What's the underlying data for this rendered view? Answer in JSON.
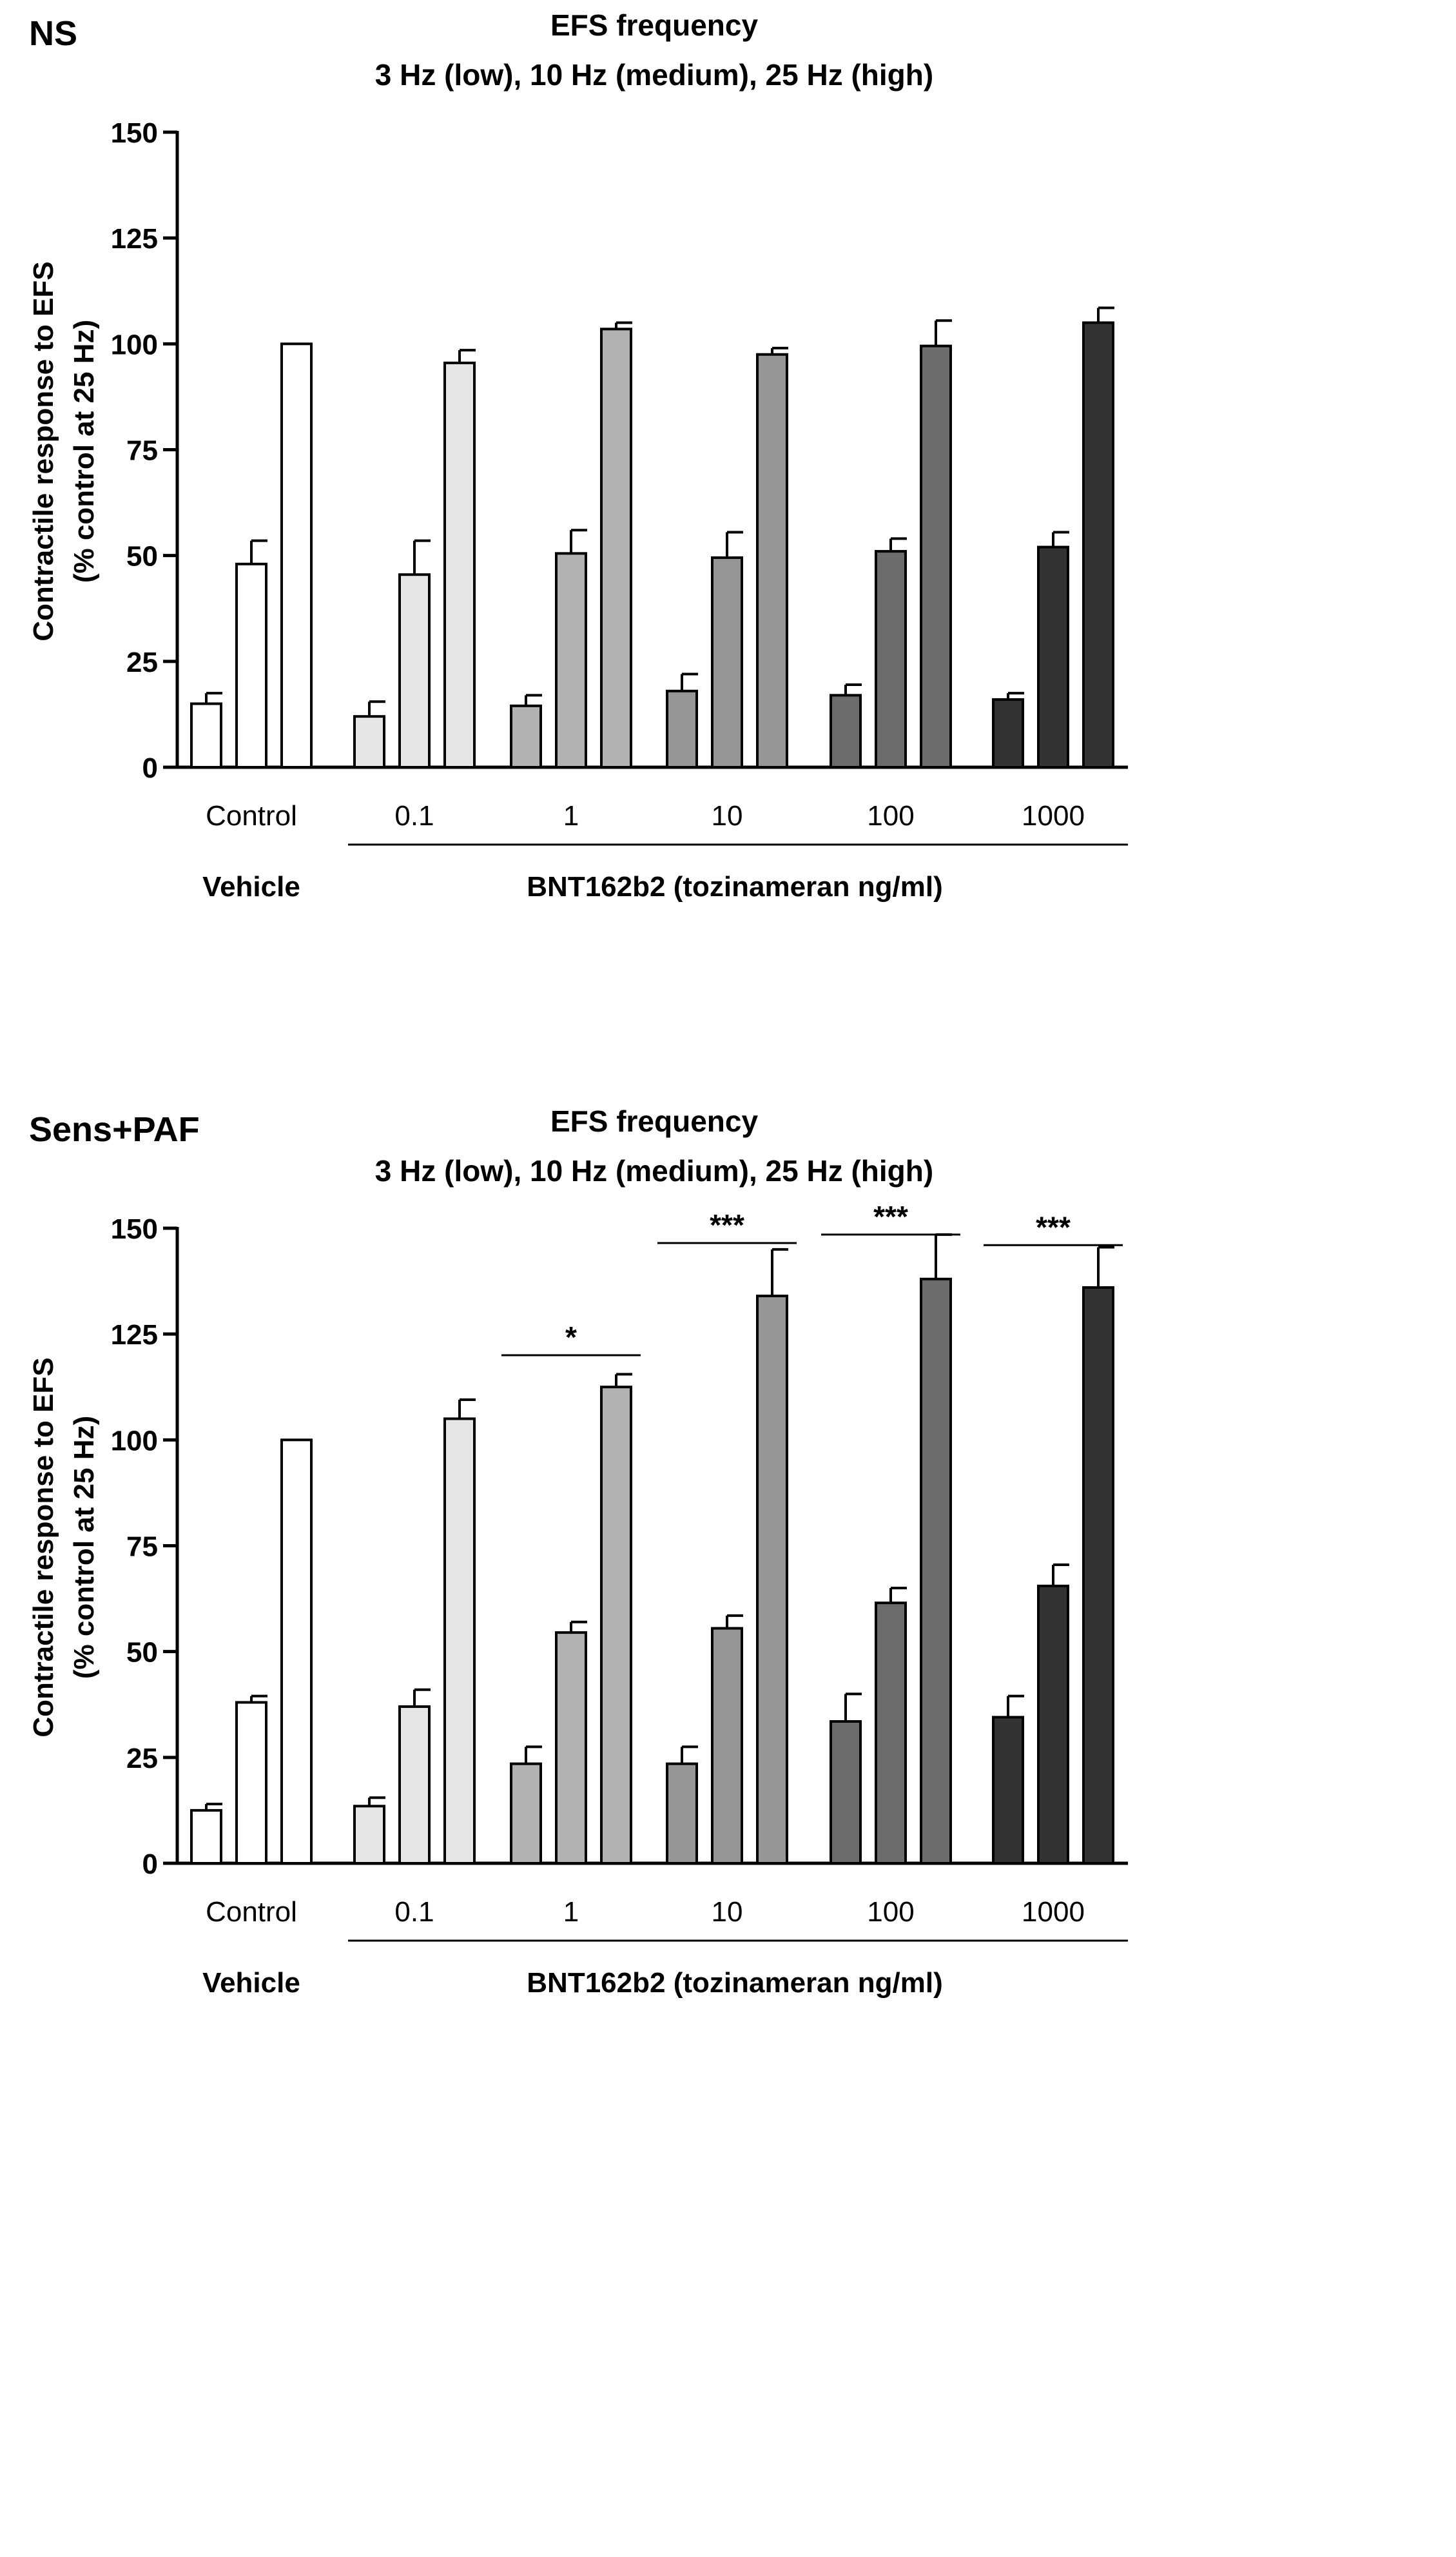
{
  "figure": {
    "background": "#ffffff"
  },
  "chart_data": [
    {
      "type": "bar",
      "panel_label": "NS",
      "title": "EFS frequency",
      "subtitle": "3 Hz (low), 10 Hz (medium), 25 Hz (high)",
      "ylabel_line1": "Contractile response to EFS",
      "ylabel_line2": "(% control at 25 Hz)",
      "ylim": [
        0,
        150
      ],
      "yticks": [
        "0",
        "25",
        "50",
        "75",
        "100",
        "125",
        "150"
      ],
      "categories": [
        "Control",
        "0.1",
        "1",
        "10",
        "100",
        "1000"
      ],
      "group_colors": [
        "#ffffff",
        "#e6e6e6",
        "#b2b2b2",
        "#969696",
        "#6c6c6c",
        "#333333"
      ],
      "series": [
        {
          "name": "3 Hz (low)",
          "values": [
            15,
            12,
            14.5,
            18,
            17,
            16
          ],
          "errors": [
            2.5,
            3.5,
            2.5,
            4,
            2.5,
            1.5
          ]
        },
        {
          "name": "10 Hz (medium)",
          "values": [
            48,
            45.5,
            50.5,
            49.5,
            51,
            52
          ],
          "errors": [
            5.5,
            8,
            5.5,
            6,
            3,
            3.5
          ]
        },
        {
          "name": "25 Hz (high)",
          "values": [
            100,
            95.5,
            103.5,
            97.5,
            99.5,
            105
          ],
          "errors": [
            0,
            3,
            1.5,
            1.5,
            6,
            3.5
          ]
        }
      ],
      "annotations": [],
      "group_labels": {
        "vehicle": "Vehicle",
        "treatment": "BNT162b2 (tozinameran ng/ml)"
      }
    },
    {
      "type": "bar",
      "panel_label": "Sens+PAF",
      "title": "EFS frequency",
      "subtitle": "3 Hz (low), 10 Hz (medium), 25 Hz (high)",
      "ylabel_line1": "Contractile response to EFS",
      "ylabel_line2": "(% control at 25 Hz)",
      "ylim": [
        0,
        150
      ],
      "yticks": [
        "0",
        "25",
        "50",
        "75",
        "100",
        "125",
        "150"
      ],
      "categories": [
        "Control",
        "0.1",
        "1",
        "10",
        "100",
        "1000"
      ],
      "group_colors": [
        "#ffffff",
        "#e6e6e6",
        "#b2b2b2",
        "#969696",
        "#6c6c6c",
        "#333333"
      ],
      "series": [
        {
          "name": "3 Hz (low)",
          "values": [
            12.5,
            13.5,
            23.5,
            23.5,
            33.5,
            34.5
          ],
          "errors": [
            1.5,
            2,
            4,
            4,
            6.5,
            5
          ]
        },
        {
          "name": "10 Hz (medium)",
          "values": [
            38,
            37,
            54.5,
            55.5,
            61.5,
            65.5
          ],
          "errors": [
            1.5,
            4,
            2.5,
            3,
            3.5,
            5
          ]
        },
        {
          "name": "25 Hz (high)",
          "values": [
            100,
            105,
            112.5,
            134,
            138,
            136
          ],
          "errors": [
            0,
            4.5,
            3,
            11,
            10.5,
            9.5
          ]
        }
      ],
      "annotations": [
        {
          "group": 2,
          "text": "*",
          "y": 120
        },
        {
          "group": 3,
          "text": "***",
          "y": 146.5
        },
        {
          "group": 4,
          "text": "***",
          "y": 148.5
        },
        {
          "group": 5,
          "text": "***",
          "y": 146
        }
      ],
      "group_labels": {
        "vehicle": "Vehicle",
        "treatment": "BNT162b2 (tozinameran ng/ml)"
      }
    }
  ]
}
